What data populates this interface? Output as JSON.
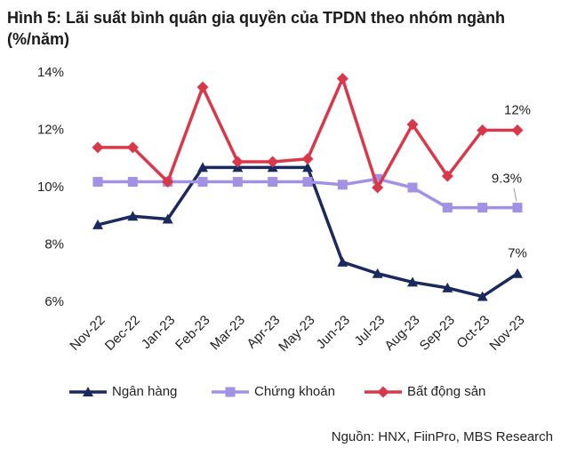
{
  "chart_data": {
    "type": "line",
    "title": "Hình 5: Lãi suất bình quân gia quyền của TPDN theo nhóm ngành (%/năm)",
    "categories": [
      "Nov-22",
      "Dec-22",
      "Jan-23",
      "Feb-23",
      "Mar-23",
      "Apr-23",
      "May-23",
      "Jun-23",
      "Jul-23",
      "Aug-23",
      "Sep-23",
      "Oct-23",
      "Nov-23"
    ],
    "series": [
      {
        "name": "Ngân hàng",
        "color": "#1b2a5e",
        "marker": "triangle",
        "values": [
          8.7,
          9.0,
          8.9,
          10.7,
          10.7,
          10.7,
          10.7,
          7.4,
          7.0,
          6.7,
          6.5,
          6.2,
          7.0
        ],
        "value_labels": [
          null,
          null,
          null,
          null,
          null,
          null,
          null,
          null,
          null,
          null,
          null,
          null,
          "7%"
        ]
      },
      {
        "name": "Chứng khoán",
        "color": "#a391e6",
        "marker": "square",
        "values": [
          10.2,
          10.2,
          10.2,
          10.2,
          10.2,
          10.2,
          10.2,
          10.1,
          10.3,
          10.0,
          9.3,
          9.3,
          9.3
        ],
        "value_labels": [
          null,
          null,
          null,
          null,
          null,
          null,
          null,
          null,
          null,
          null,
          null,
          null,
          "9.3%"
        ]
      },
      {
        "name": "Bất động sản",
        "color": "#d9384a",
        "marker": "diamond",
        "values": [
          11.4,
          11.4,
          10.2,
          13.5,
          10.9,
          10.9,
          11.0,
          13.8,
          10.0,
          12.2,
          10.4,
          12.0,
          12.0
        ],
        "value_labels": [
          null,
          null,
          null,
          null,
          null,
          null,
          null,
          null,
          null,
          null,
          null,
          null,
          "12%"
        ]
      }
    ],
    "ylim": [
      6,
      14
    ],
    "yticks": [
      {
        "value": 6,
        "label": "6%"
      },
      {
        "value": 8,
        "label": "8%"
      },
      {
        "value": 10,
        "label": "10%"
      },
      {
        "value": 12,
        "label": "12%"
      },
      {
        "value": 14,
        "label": "14%"
      }
    ],
    "grid": false,
    "legend": "bottom",
    "source": "Nguồn: HNX, FiinPro, MBS Research"
  }
}
